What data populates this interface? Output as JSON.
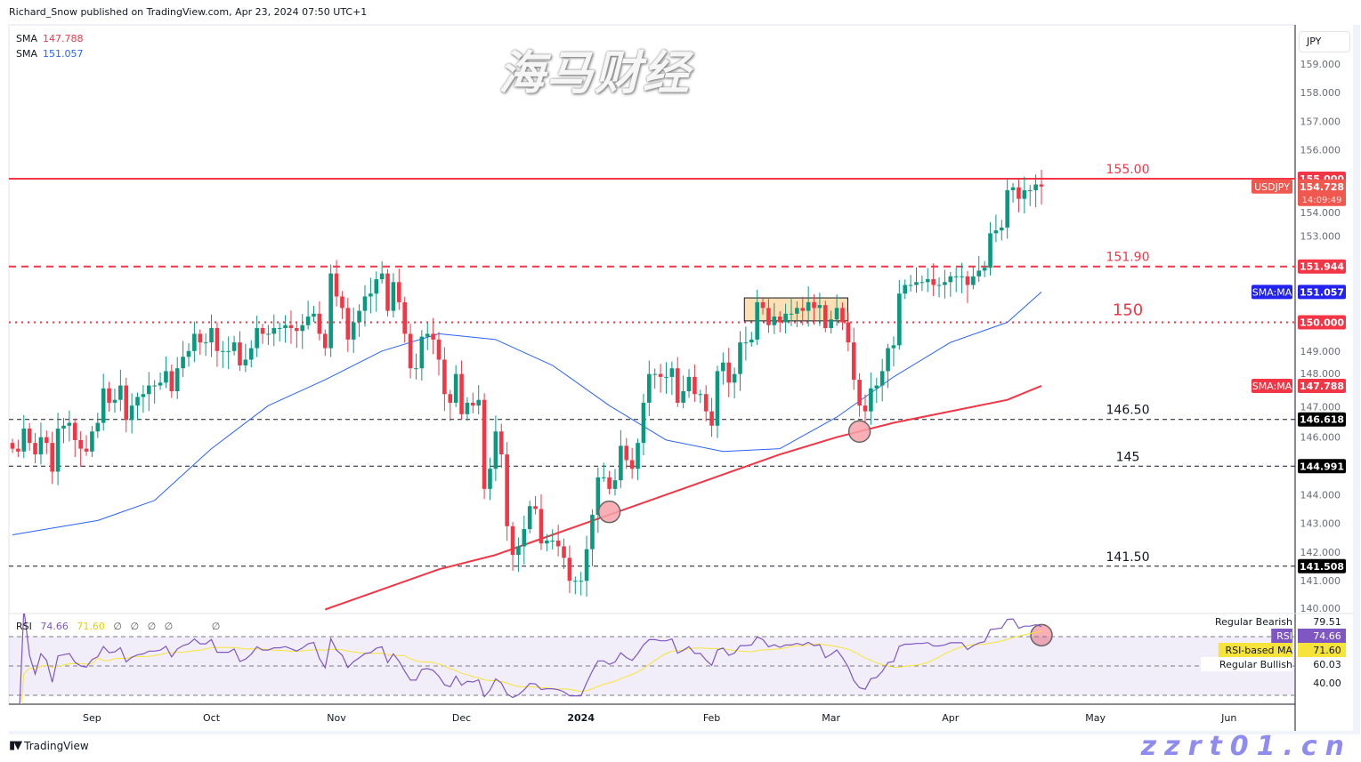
{
  "header": {
    "published": "Richard_Snow published on TradingView.com, Apr 23, 2024 07:50 UTC+1"
  },
  "legend": {
    "items": [
      {
        "label": "SMA",
        "value": "147.788"
      },
      {
        "label": "SMA",
        "value": "151.057"
      }
    ]
  },
  "currency_button": "JPY",
  "rsi_legend": {
    "label": "RSI",
    "rsi": "74.66",
    "ma": "71.60",
    "extras": [
      "∅",
      "∅",
      "∅",
      "∅",
      "∅"
    ]
  },
  "footer": {
    "brand": "TradingView"
  },
  "watermark": {
    "cn": "海马财经",
    "url": "zzrt01.cn"
  },
  "colors": {
    "up": "#089981",
    "down": "#f23645",
    "sma200": "#f23645",
    "sma50": "#2962ff",
    "rsi": "#7e57c2",
    "rsi_ma": "#f7e43a",
    "level_red": "#f23645",
    "level_black": "#131722"
  },
  "chart_data": {
    "type": "candlestick",
    "symbol": "USDJPY",
    "timeframe": "daily",
    "ylim": [
      140,
      159.5
    ],
    "y_ticks": [
      "140.000",
      "141.000",
      "142.000",
      "143.000",
      "144.000",
      "146.000",
      "147.000",
      "148.000",
      "149.000",
      "153.000",
      "154.000",
      "156.000",
      "157.000",
      "158.000",
      "159.000"
    ],
    "x_ticks": [
      {
        "label": "Sep",
        "week": "Aug 28",
        "day": 4
      },
      {
        "label": "Oct",
        "week": "Oct 2",
        "day": 0
      },
      {
        "label": "Nov",
        "week": "Oct 30",
        "day": 2
      },
      {
        "label": "Dec",
        "week": "Nov 27",
        "day": 4
      },
      {
        "label": "2024",
        "week": "Jan 1",
        "day": 0,
        "bold": true
      },
      {
        "label": "Feb",
        "week": "Jan 29",
        "day": 3
      },
      {
        "label": "Mar",
        "week": "Feb 26",
        "day": 4
      },
      {
        "label": "Apr",
        "week": "Apr 1",
        "day": 0
      },
      {
        "label": "May",
        "future_weeks": 1.9
      },
      {
        "label": "Jun",
        "future_weeks": 6.6
      }
    ],
    "weeks": [
      {
        "week": "Aug 14",
        "closes": [
          145.6,
          145.5,
          146.3,
          145.8,
          145.4
        ]
      },
      {
        "week": "Aug 21",
        "closes": [
          146.0,
          145.8,
          144.8,
          146.3,
          146.4
        ]
      },
      {
        "week": "Aug 28",
        "closes": [
          146.5,
          145.9,
          145.6,
          145.5,
          146.2
        ]
      },
      {
        "week": "Sep 4",
        "closes": [
          146.5,
          147.7,
          147.2,
          147.3,
          147.8
        ]
      },
      {
        "week": "Sep 11",
        "closes": [
          146.6,
          147.1,
          147.4,
          147.5,
          147.8
        ]
      },
      {
        "week": "Sep 18",
        "closes": [
          147.8,
          147.9,
          148.3,
          147.6,
          148.4
        ]
      },
      {
        "week": "Sep 25",
        "closes": [
          148.8,
          149.0,
          149.6,
          149.3,
          149.3
        ]
      },
      {
        "week": "Oct 2",
        "closes": [
          149.8,
          149.0,
          149.0,
          149.0,
          149.3
        ]
      },
      {
        "week": "Oct 9",
        "closes": [
          148.5,
          148.7,
          149.1,
          149.8,
          149.6
        ]
      },
      {
        "week": "Oct 16",
        "closes": [
          149.6,
          149.8,
          149.8,
          149.9,
          149.8
        ]
      },
      {
        "week": "Oct 23",
        "closes": [
          149.7,
          149.9,
          150.2,
          150.3,
          149.6
        ]
      },
      {
        "week": "Oct 30",
        "closes": [
          149.1,
          151.7,
          150.9,
          150.5,
          149.4
        ]
      },
      {
        "week": "Nov 6",
        "closes": [
          150.0,
          150.4,
          150.9,
          151.0,
          151.5
        ]
      },
      {
        "week": "Nov 13",
        "closes": [
          151.7,
          150.4,
          151.4,
          150.7,
          149.6
        ]
      },
      {
        "week": "Nov 20",
        "closes": [
          148.4,
          148.4,
          149.5,
          149.6,
          149.4
        ]
      },
      {
        "week": "Nov 27",
        "closes": [
          148.7,
          147.5,
          147.2,
          148.2,
          146.8
        ]
      },
      {
        "week": "Dec 4",
        "closes": [
          147.2,
          147.1,
          147.3,
          144.2,
          144.9
        ]
      },
      {
        "week": "Dec 11",
        "closes": [
          146.2,
          145.4,
          142.9,
          141.9,
          142.2
        ]
      },
      {
        "week": "Dec 18",
        "closes": [
          142.8,
          143.6,
          143.5,
          142.3,
          142.4
        ]
      },
      {
        "week": "Dec 25",
        "closes": [
          142.4,
          142.2,
          141.8,
          141.0,
          141.0
        ]
      },
      {
        "week": "Jan 1",
        "closes": [
          141.0,
          142.1,
          143.3,
          144.6,
          144.6
        ]
      },
      {
        "week": "Jan 8",
        "closes": [
          144.2,
          144.5,
          145.7,
          145.2,
          144.9
        ]
      },
      {
        "week": "Jan 15",
        "closes": [
          145.8,
          147.2,
          148.2,
          148.2,
          148.1
        ]
      },
      {
        "week": "Jan 22",
        "closes": [
          148.1,
          148.4,
          147.2,
          147.6,
          148.1
        ]
      },
      {
        "week": "Jan 29",
        "closes": [
          147.5,
          147.5,
          146.9,
          146.4,
          148.3
        ]
      },
      {
        "week": "Feb 5",
        "closes": [
          148.6,
          147.9,
          148.2,
          149.3,
          149.3
        ]
      },
      {
        "week": "Feb 12",
        "closes": [
          149.4,
          150.7,
          150.5,
          149.9,
          150.2
        ]
      },
      {
        "week": "Feb 19",
        "closes": [
          150.0,
          150.3,
          150.3,
          150.5,
          150.4
        ]
      },
      {
        "week": "Feb 26",
        "closes": [
          150.7,
          150.5,
          150.6,
          149.8,
          150.1
        ]
      },
      {
        "week": "Mar 4",
        "closes": [
          150.5,
          150.0,
          149.3,
          148.0,
          147.1
        ]
      },
      {
        "week": "Mar 11",
        "closes": [
          146.9,
          147.7,
          147.8,
          148.3,
          149.1
        ]
      },
      {
        "week": "Mar 18",
        "closes": [
          149.2,
          151.0,
          151.3,
          151.3,
          151.4
        ]
      },
      {
        "week": "Mar 25",
        "closes": [
          151.4,
          151.5,
          151.3,
          151.3,
          151.4
        ]
      },
      {
        "week": "Apr 1",
        "closes": [
          151.6,
          151.6,
          151.6,
          151.3,
          151.6
        ]
      },
      {
        "week": "Apr 8",
        "closes": [
          151.8,
          151.9,
          153.1,
          153.2,
          153.3
        ]
      },
      {
        "week": "Apr 15",
        "closes": [
          154.6,
          154.7,
          154.3,
          154.6,
          154.6
        ]
      },
      {
        "week": "Apr 22",
        "closes": [
          154.8,
          154.728
        ]
      }
    ],
    "sma50": [
      [
        "Aug 14",
        142.6
      ],
      [
        "Sep 4",
        143.1
      ],
      [
        "Sep 18",
        143.8
      ],
      [
        "Oct 2",
        145.6
      ],
      [
        "Oct 16",
        147.1
      ],
      [
        "Oct 30",
        148.0
      ],
      [
        "Nov 13",
        149.0
      ],
      [
        "Nov 27",
        149.6
      ],
      [
        "Dec 11",
        149.4
      ],
      [
        "Dec 25",
        148.5
      ],
      [
        "Jan 8",
        147.1
      ],
      [
        "Jan 22",
        145.9
      ],
      [
        "Feb 5",
        145.5
      ],
      [
        "Feb 19",
        145.6
      ],
      [
        "Mar 4",
        146.7
      ],
      [
        "Mar 18",
        148.1
      ],
      [
        "Apr 1",
        149.3
      ],
      [
        "Apr 15",
        150.0
      ],
      [
        "Apr 22",
        151.057
      ]
    ],
    "sma200": [
      [
        "Oct 30",
        140.0
      ],
      [
        "Nov 13",
        140.7
      ],
      [
        "Nov 27",
        141.4
      ],
      [
        "Dec 11",
        141.9
      ],
      [
        "Dec 25",
        142.6
      ],
      [
        "Jan 8",
        143.3
      ],
      [
        "Jan 22",
        144.0
      ],
      [
        "Feb 5",
        144.7
      ],
      [
        "Feb 19",
        145.4
      ],
      [
        "Mar 4",
        146.0
      ],
      [
        "Mar 18",
        146.5
      ],
      [
        "Apr 1",
        146.9
      ],
      [
        "Apr 15",
        147.3
      ],
      [
        "Apr 22",
        147.788
      ]
    ],
    "levels": [
      {
        "price": 155.0,
        "label": "155.00",
        "axis": "155.000",
        "style": "solid",
        "color": "red"
      },
      {
        "price": 151.944,
        "label": "151.90",
        "axis": "151.944",
        "style": "dashed",
        "color": "red"
      },
      {
        "price": 150.0,
        "label": "150",
        "axis": "150.000",
        "style": "dotted",
        "color": "red",
        "big": true
      },
      {
        "price": 146.618,
        "label": "146.50",
        "axis": "146.618",
        "style": "dashed",
        "color": "black"
      },
      {
        "price": 144.991,
        "label": "145",
        "axis": "144.991",
        "style": "dashed",
        "color": "black"
      },
      {
        "price": 141.508,
        "label": "141.50",
        "axis": "141.508",
        "style": "dashed",
        "color": "black"
      }
    ],
    "price_tags": [
      {
        "name": "USDJPY",
        "value": "154.728",
        "time": "14:09:49",
        "price": 154.728,
        "color": "#f0584f"
      },
      {
        "name": "SMA:MA",
        "value": "151.057",
        "price": 151.057,
        "color": "#2323f0"
      },
      {
        "name": "SMA:MA",
        "value": "147.788",
        "price": 147.788,
        "color": "#f23645"
      }
    ],
    "consolidation_box": {
      "from": "Feb 12",
      "to": "Mar 4",
      "from_day": 0,
      "to_day": 1,
      "top": 150.85,
      "bottom": 150.05
    },
    "markers": [
      {
        "week": "Jan 8",
        "day": 0,
        "price": 143.4
      },
      {
        "week": "Mar 4",
        "day": 4,
        "price": 146.2
      },
      {
        "week": "Apr 22",
        "day": 1,
        "panel": "rsi",
        "value": 71
      }
    ],
    "rsi": {
      "levels": [
        70,
        50,
        30
      ],
      "period": 14,
      "ma_period": 14,
      "axis_tags": [
        {
          "name": "Regular Bearish",
          "value": "79.51"
        },
        {
          "name": "RSI",
          "value": "74.66"
        },
        {
          "name": "RSI-based MA",
          "value": "71.60"
        },
        {
          "name": "Regular Bullish",
          "value": "60.03"
        },
        {
          "name": "",
          "value": "40.00"
        }
      ]
    }
  }
}
